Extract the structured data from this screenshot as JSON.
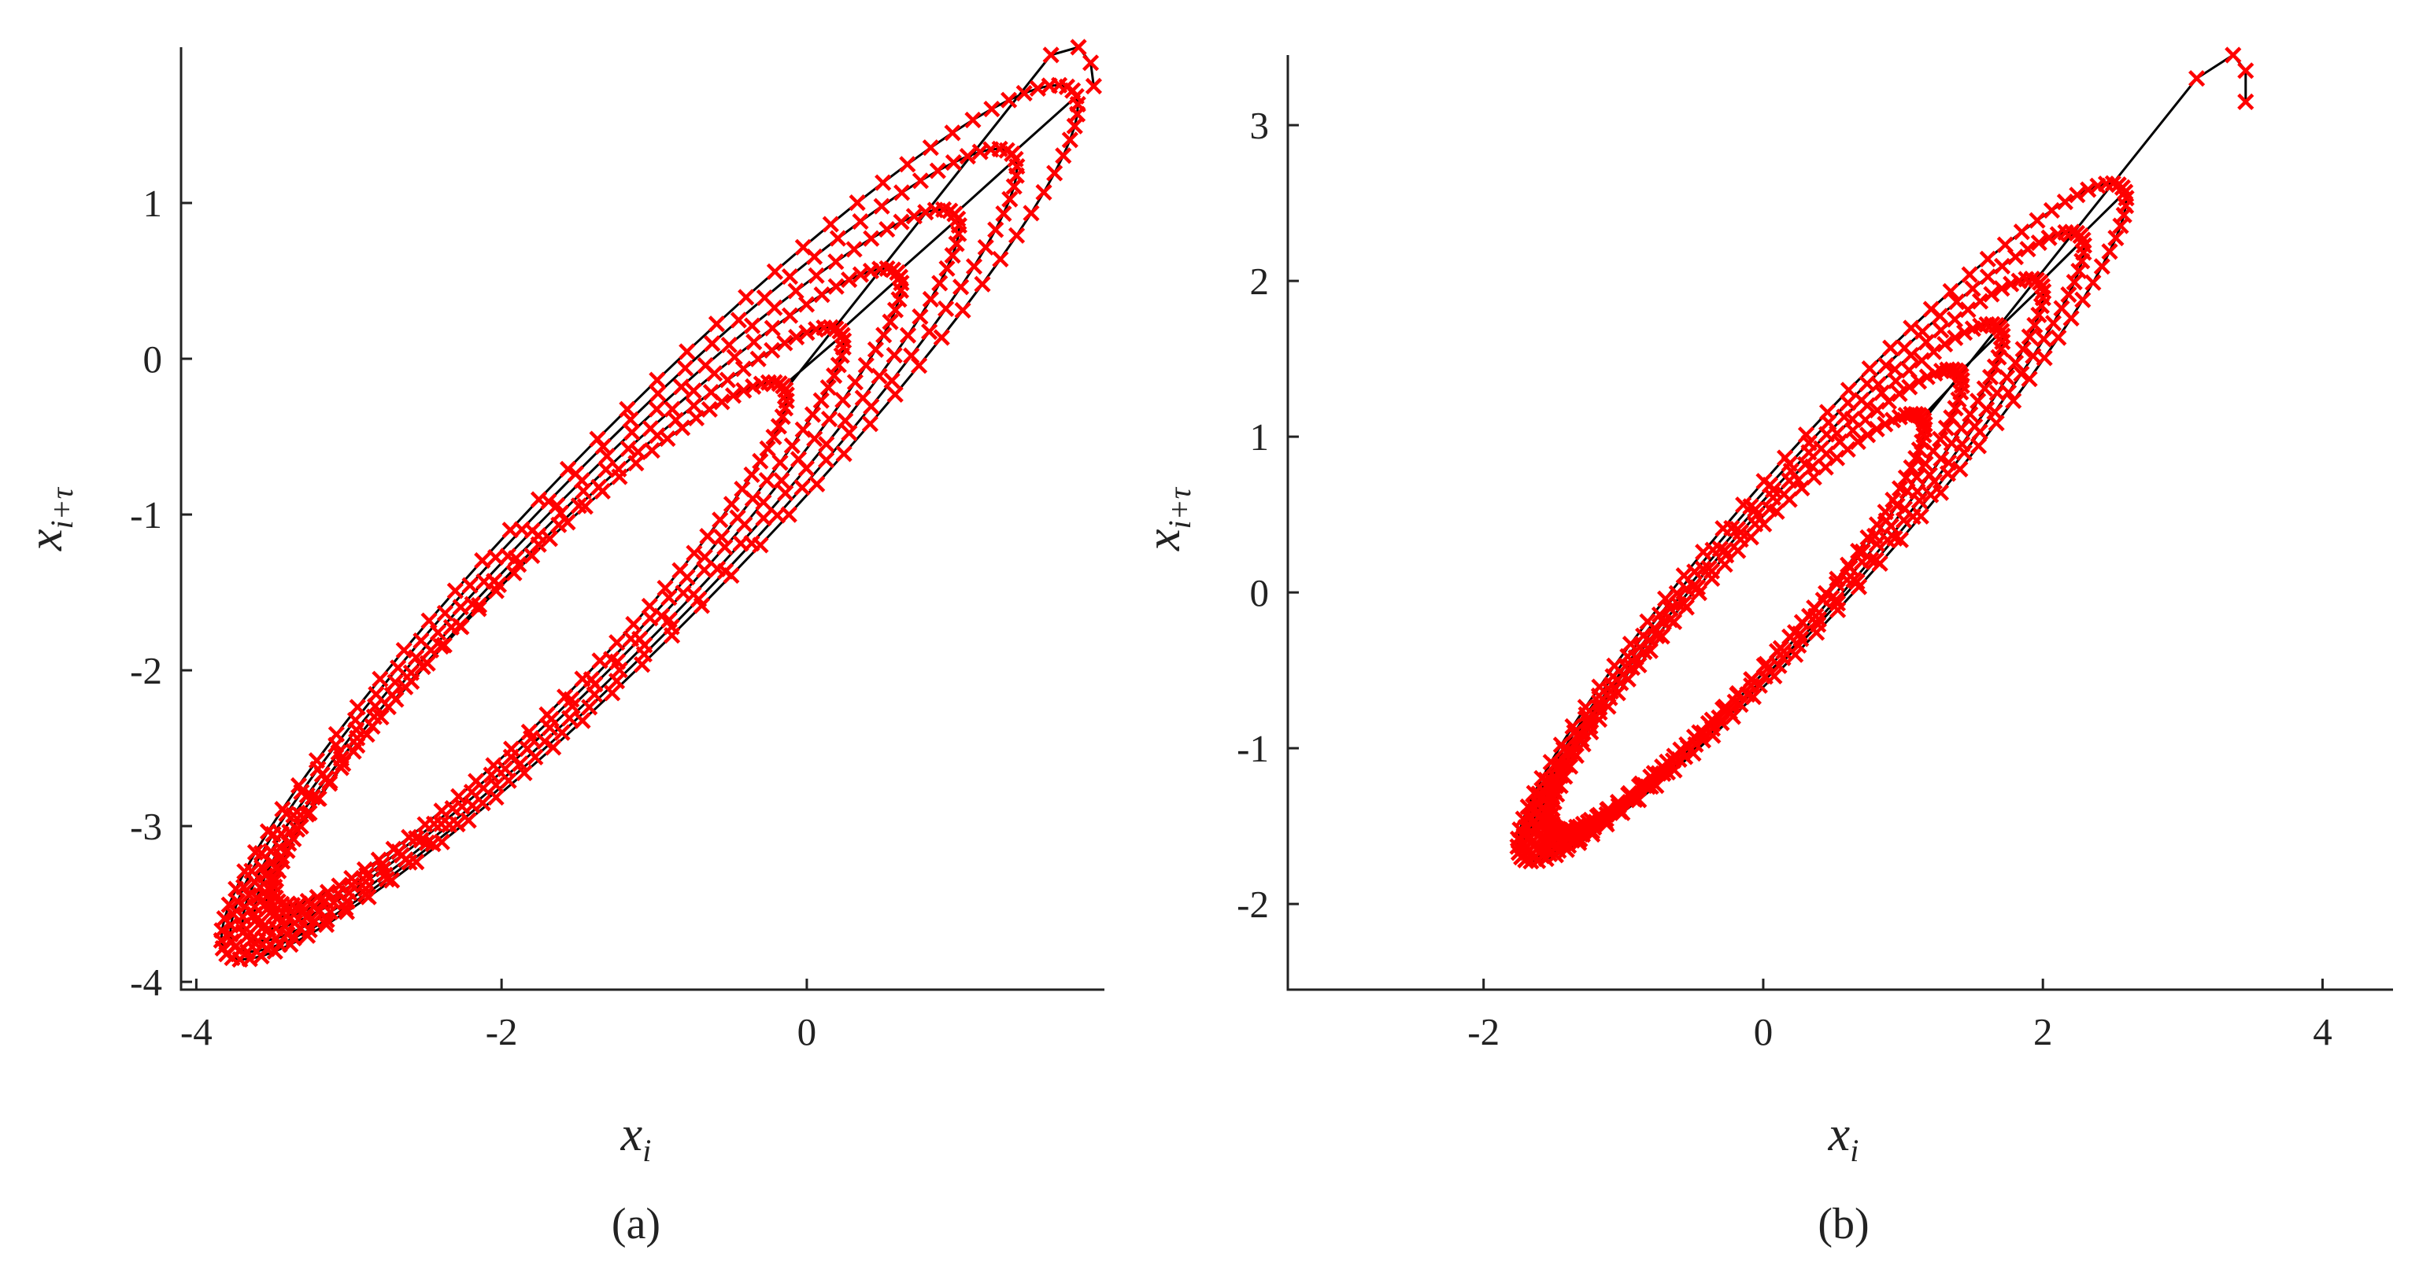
{
  "chart_data": [
    {
      "type": "scatter",
      "panel_label": "(a)",
      "xlabel": "x",
      "xlabel_sub": "i",
      "ylabel": "x",
      "ylabel_sub": "i+τ",
      "xlim": [
        -4.1,
        1.95
      ],
      "ylim": [
        -4.05,
        2.0
      ],
      "xticks": [
        -4,
        -2,
        0
      ],
      "xtick_labels": [
        "-4",
        "-2",
        "0"
      ],
      "yticks": [
        -4,
        -3,
        -2,
        -1,
        0,
        1
      ],
      "ytick_labels": [
        "-4",
        "-3",
        "-2",
        "-1",
        "0",
        "1"
      ],
      "grid": false,
      "legend": "none",
      "series": [
        {
          "style": "red x markers with black connecting line",
          "loops": [
            {
              "center": [
                -1.03,
                -1.05
              ],
              "a": 3.92,
              "b": 0.62,
              "t_start": 0.0,
              "t_end": 1.0
            },
            {
              "center": [
                -1.2,
                -1.23
              ],
              "a": 3.6,
              "b": 0.57
            },
            {
              "center": [
                -1.35,
                -1.39
              ],
              "a": 3.28,
              "b": 0.52
            },
            {
              "center": [
                -1.5,
                -1.54
              ],
              "a": 2.96,
              "b": 0.47
            },
            {
              "center": [
                -1.65,
                -1.69
              ],
              "a": 2.64,
              "b": 0.43
            },
            {
              "center": [
                -1.81,
                -1.83
              ],
              "a": 2.34,
              "b": 0.4
            }
          ],
          "tail": [
            [
              1.6,
              1.95
            ],
            [
              1.78,
              2.0
            ],
            [
              1.86,
              1.9
            ],
            [
              1.88,
              1.75
            ]
          ]
        }
      ]
    },
    {
      "type": "scatter",
      "panel_label": "(b)",
      "xlabel": "x",
      "xlabel_sub": "i",
      "ylabel": "x",
      "ylabel_sub": "i+τ",
      "xlim": [
        -3.4,
        4.2
      ],
      "ylim": [
        -2.55,
        3.45
      ],
      "xticks": [
        -2,
        0,
        2,
        4
      ],
      "xtick_labels": [
        "-2",
        "0",
        "2",
        "4"
      ],
      "yticks": [
        -2,
        -1,
        0,
        1,
        2,
        3
      ],
      "ytick_labels": [
        "-2",
        "-1",
        "0",
        "1",
        "2",
        "3"
      ],
      "grid": false,
      "legend": "none",
      "series": [
        {
          "style": "red x markers with black connecting line",
          "loops": [
            {
              "center": [
                0.42,
                0.45
              ],
              "a": 3.04,
              "b": 0.48
            },
            {
              "center": [
                0.29,
                0.31
              ],
              "a": 2.8,
              "b": 0.44
            },
            {
              "center": [
                0.17,
                0.18
              ],
              "a": 2.56,
              "b": 0.41
            },
            {
              "center": [
                0.05,
                0.06
              ],
              "a": 2.32,
              "b": 0.38
            },
            {
              "center": [
                -0.07,
                -0.06
              ],
              "a": 2.08,
              "b": 0.35
            },
            {
              "center": [
                -0.18,
                -0.19
              ],
              "a": 1.86,
              "b": 0.33
            }
          ],
          "tail": [
            [
              3.1,
              3.3
            ],
            [
              3.36,
              3.45
            ],
            [
              3.45,
              3.35
            ],
            [
              3.45,
              3.15
            ]
          ]
        }
      ]
    }
  ]
}
